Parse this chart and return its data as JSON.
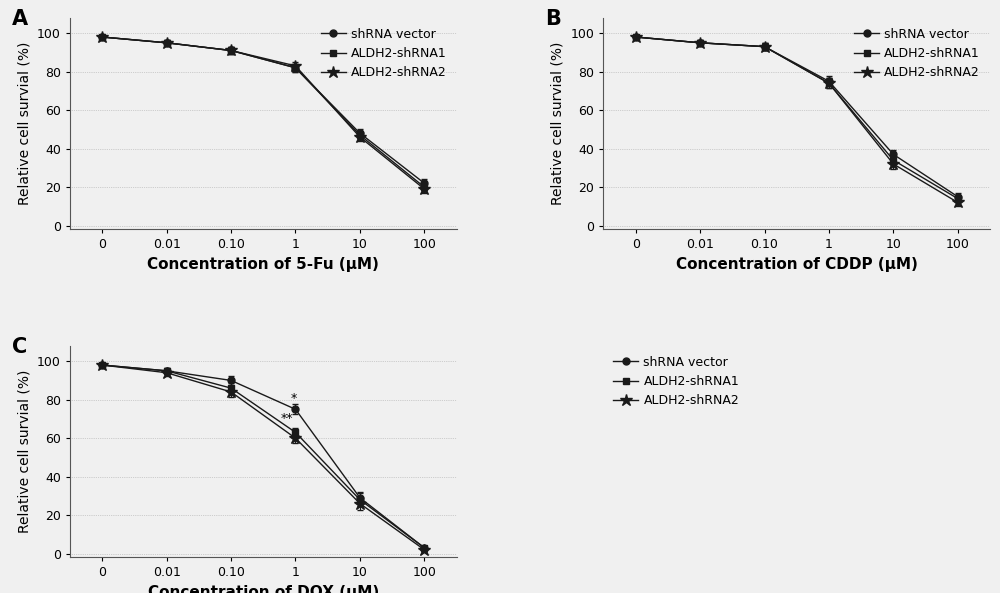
{
  "background_color": "#f0f0f0",
  "x_positions": [
    0,
    1,
    2,
    3,
    4,
    5
  ],
  "x_labels": [
    "0",
    "0.01",
    "0.10",
    "1",
    "10",
    "100"
  ],
  "panels": [
    {
      "label": "A",
      "xlabel": "Concentration of 5-Fu (μM)",
      "ylabel": "Relative cell survial (%)",
      "series": [
        {
          "name": "shRNA vector",
          "marker": "o",
          "y": [
            98,
            95,
            91,
            82,
            48,
            22
          ],
          "yerr": [
            1.2,
            1.2,
            1.8,
            2.2,
            2.2,
            2.0
          ]
        },
        {
          "name": "ALDH2-shRNA1",
          "marker": "s",
          "y": [
            98,
            95,
            91,
            82,
            47,
            20
          ],
          "yerr": [
            1.2,
            1.2,
            1.8,
            2.2,
            2.2,
            2.0
          ]
        },
        {
          "name": "ALDH2-shRNA2",
          "marker": "*",
          "y": [
            98,
            95,
            91,
            83,
            46,
            19
          ],
          "yerr": [
            1.2,
            1.2,
            1.8,
            2.2,
            2.2,
            2.0
          ]
        }
      ],
      "annotation": null
    },
    {
      "label": "B",
      "xlabel": "Concentration of CDDP (μM)",
      "ylabel": "Relative cell survial (%)",
      "series": [
        {
          "name": "shRNA vector",
          "marker": "o",
          "y": [
            98,
            95,
            93,
            75,
            37,
            15
          ],
          "yerr": [
            1.2,
            1.2,
            1.8,
            2.5,
            2.5,
            2.0
          ]
        },
        {
          "name": "ALDH2-shRNA1",
          "marker": "s",
          "y": [
            98,
            95,
            93,
            74,
            34,
            14
          ],
          "yerr": [
            1.2,
            1.2,
            1.8,
            2.5,
            2.5,
            2.0
          ]
        },
        {
          "name": "ALDH2-shRNA2",
          "marker": "*",
          "y": [
            98,
            95,
            93,
            74,
            32,
            12
          ],
          "yerr": [
            1.2,
            1.2,
            1.8,
            2.5,
            2.5,
            2.0
          ]
        }
      ],
      "annotation": null
    },
    {
      "label": "C",
      "xlabel": "Concentration of DOX (μM)",
      "ylabel": "Relative cell survial (%)",
      "series": [
        {
          "name": "shRNA vector",
          "marker": "o",
          "y": [
            98,
            95,
            90,
            75,
            29,
            3
          ],
          "yerr": [
            1.2,
            1.5,
            2.5,
            2.5,
            3.0,
            1.0
          ]
        },
        {
          "name": "ALDH2-shRNA1",
          "marker": "s",
          "y": [
            98,
            95,
            86,
            63,
            28,
            3
          ],
          "yerr": [
            1.2,
            1.5,
            2.5,
            2.5,
            3.5,
            1.0
          ]
        },
        {
          "name": "ALDH2-shRNA2",
          "marker": "*",
          "y": [
            98,
            94,
            84,
            60,
            26,
            2
          ],
          "yerr": [
            1.2,
            1.5,
            2.5,
            2.5,
            3.5,
            1.0
          ]
        }
      ],
      "annotation": "**"
    }
  ],
  "line_color": "#1a1a1a",
  "marker_size": 5,
  "star_size": 9,
  "font_size": 10,
  "xlabel_fontsize": 11,
  "tick_fontsize": 9,
  "legend_fontsize": 9,
  "panel_label_fontsize": 15,
  "ylim": [
    -2,
    108
  ],
  "yticks": [
    0,
    20,
    40,
    60,
    80,
    100
  ]
}
